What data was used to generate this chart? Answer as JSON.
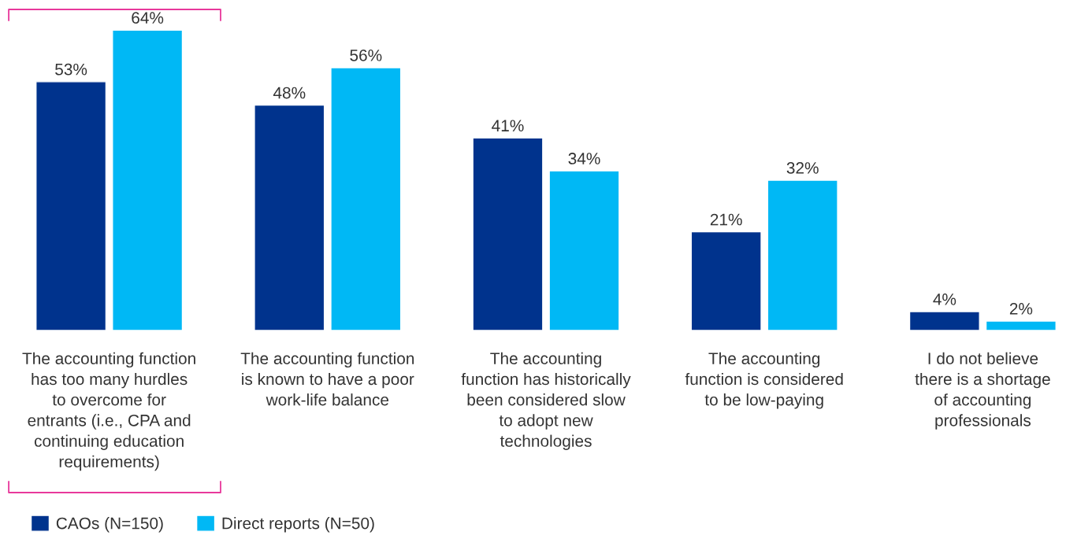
{
  "chart_data": {
    "type": "bar",
    "categories": [
      "The accounting function\nhas too many hurdles\nto overcome for\nentrants (i.e., CPA and\ncontinuing education\nrequirements)",
      "The accounting function\nis known to have a poor\nwork-life balance",
      "The accounting\nfunction has historically\nbeen considered slow\nto adopt new\ntechnologies",
      "The accounting\nfunction is considered\nto be low-paying",
      "I do not believe\nthere is a shortage\nof accounting\nprofessionals"
    ],
    "series": [
      {
        "name": "CAOs (N=150)",
        "color": "#00338d",
        "values": [
          53,
          48,
          41,
          21,
          4
        ],
        "value_labels": [
          "53%",
          "48%",
          "41%",
          "21%",
          "4%"
        ]
      },
      {
        "name": "Direct reports (N=50)",
        "color": "#00b8f5",
        "values": [
          64,
          56,
          34,
          32,
          2
        ],
        "value_labels": [
          "64%",
          "56%",
          "34%",
          "32%",
          "2%"
        ]
      }
    ],
    "legend": "bottom left"
  }
}
